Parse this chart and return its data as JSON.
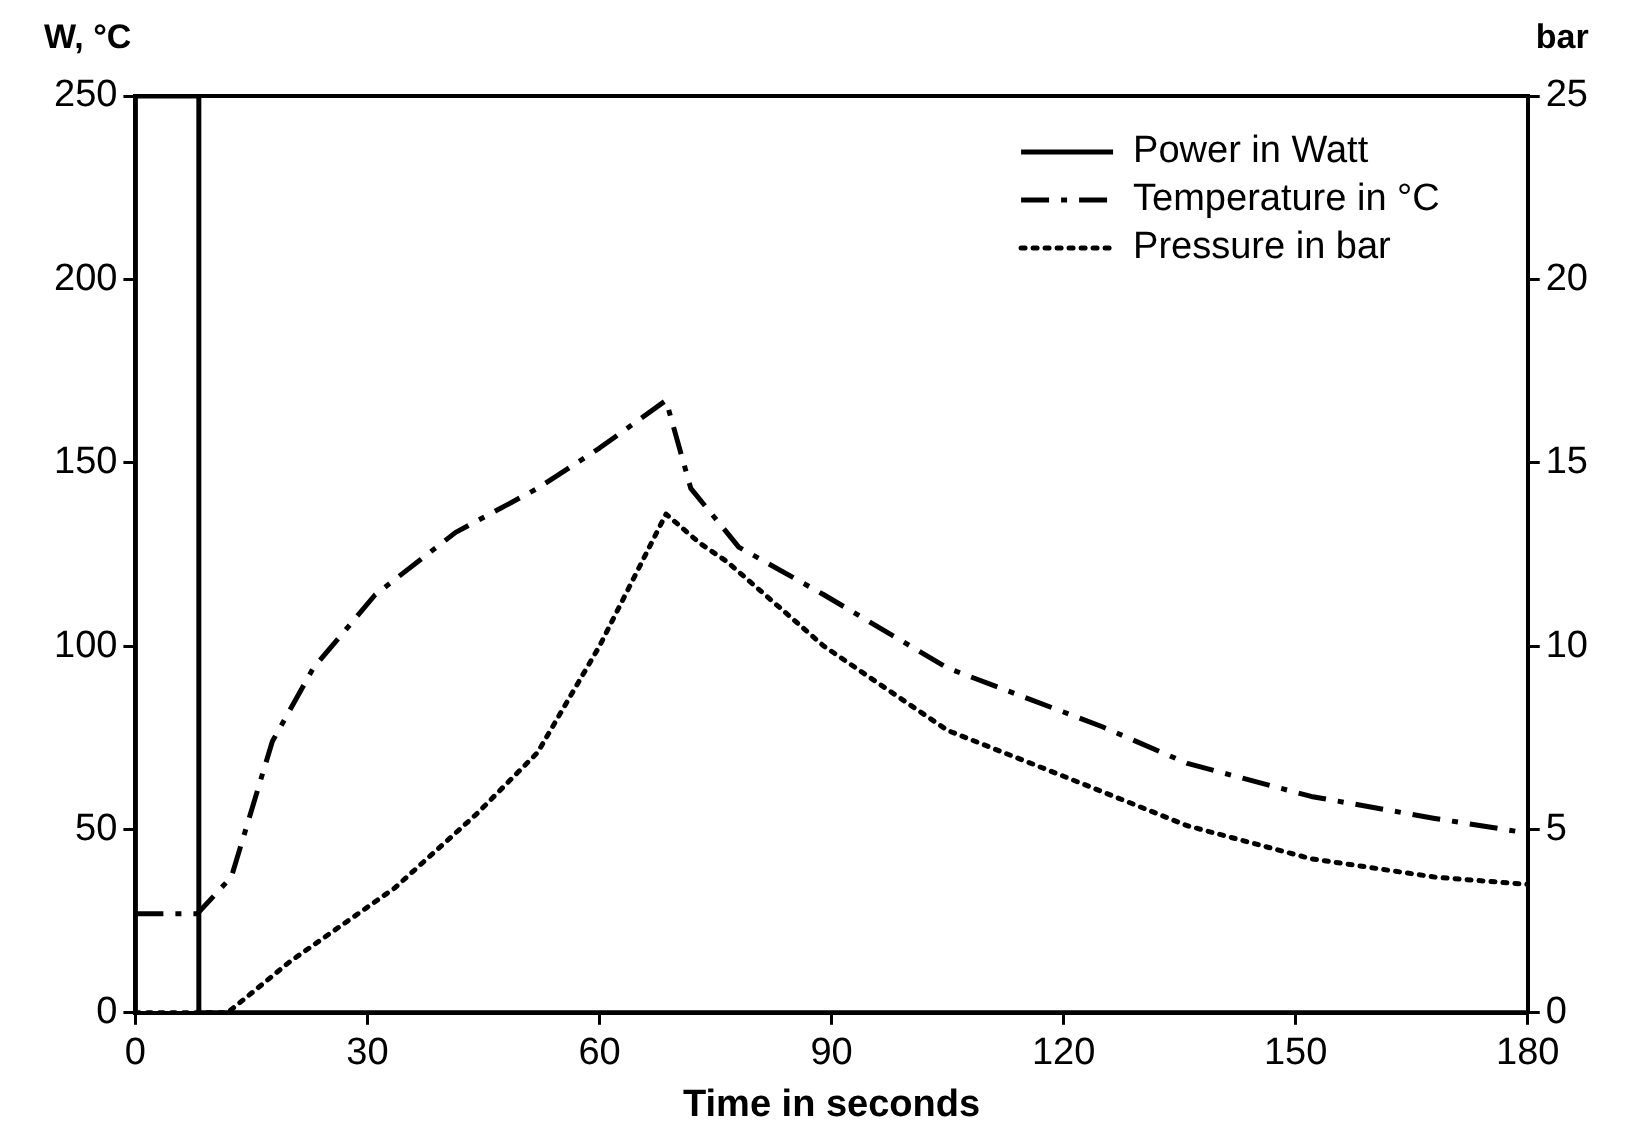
{
  "chart_data": {
    "type": "line",
    "xlabel": "Time in seconds",
    "ylabel": "W, °C",
    "y2label": "bar",
    "xlim": [
      0,
      180
    ],
    "xticks": [
      0,
      30,
      60,
      90,
      120,
      150,
      180
    ],
    "ylim": [
      0,
      250
    ],
    "yticks": [
      0,
      50,
      100,
      150,
      200,
      250
    ],
    "y2lim": [
      0,
      25
    ],
    "y2ticks": [
      0,
      5,
      10,
      15,
      20,
      25
    ],
    "grid": false,
    "legend": "top right",
    "marker": "none",
    "series": [
      {
        "name": "Power in Watt",
        "type": "step",
        "color": "#000000",
        "line_style": "solid",
        "x": [
          0,
          8.2,
          68.6,
          180
        ],
        "values": [
          0,
          250,
          0,
          0
        ]
      },
      {
        "name": "Temperature in °C",
        "color": "#000000",
        "line_style": "dashed",
        "x": [
          0,
          8,
          12.4,
          17.7,
          23,
          31,
          41.4,
          52,
          60,
          68.6,
          71.8,
          78,
          89,
          105,
          125,
          136,
          152,
          168,
          180
        ],
        "values": [
          27,
          27,
          37,
          74,
          94,
          114,
          131,
          143,
          154,
          167,
          143,
          127,
          114,
          94,
          78,
          68,
          59,
          53,
          49
        ]
      },
      {
        "name": "Pressure in bar",
        "axis": "y2",
        "color": "#000000",
        "line_style": "dotted",
        "x": [
          0,
          11.9,
          20,
          33.5,
          44,
          52,
          60,
          68.6,
          73,
          76.5,
          89,
          105,
          120.6,
          136,
          152,
          168,
          180
        ],
        "values": [
          0,
          0,
          1.4,
          3.4,
          5.4,
          7.1,
          10,
          13.6,
          12.8,
          12.3,
          10,
          7.7,
          6.4,
          5.1,
          4.2,
          3.7,
          3.5
        ]
      }
    ]
  }
}
